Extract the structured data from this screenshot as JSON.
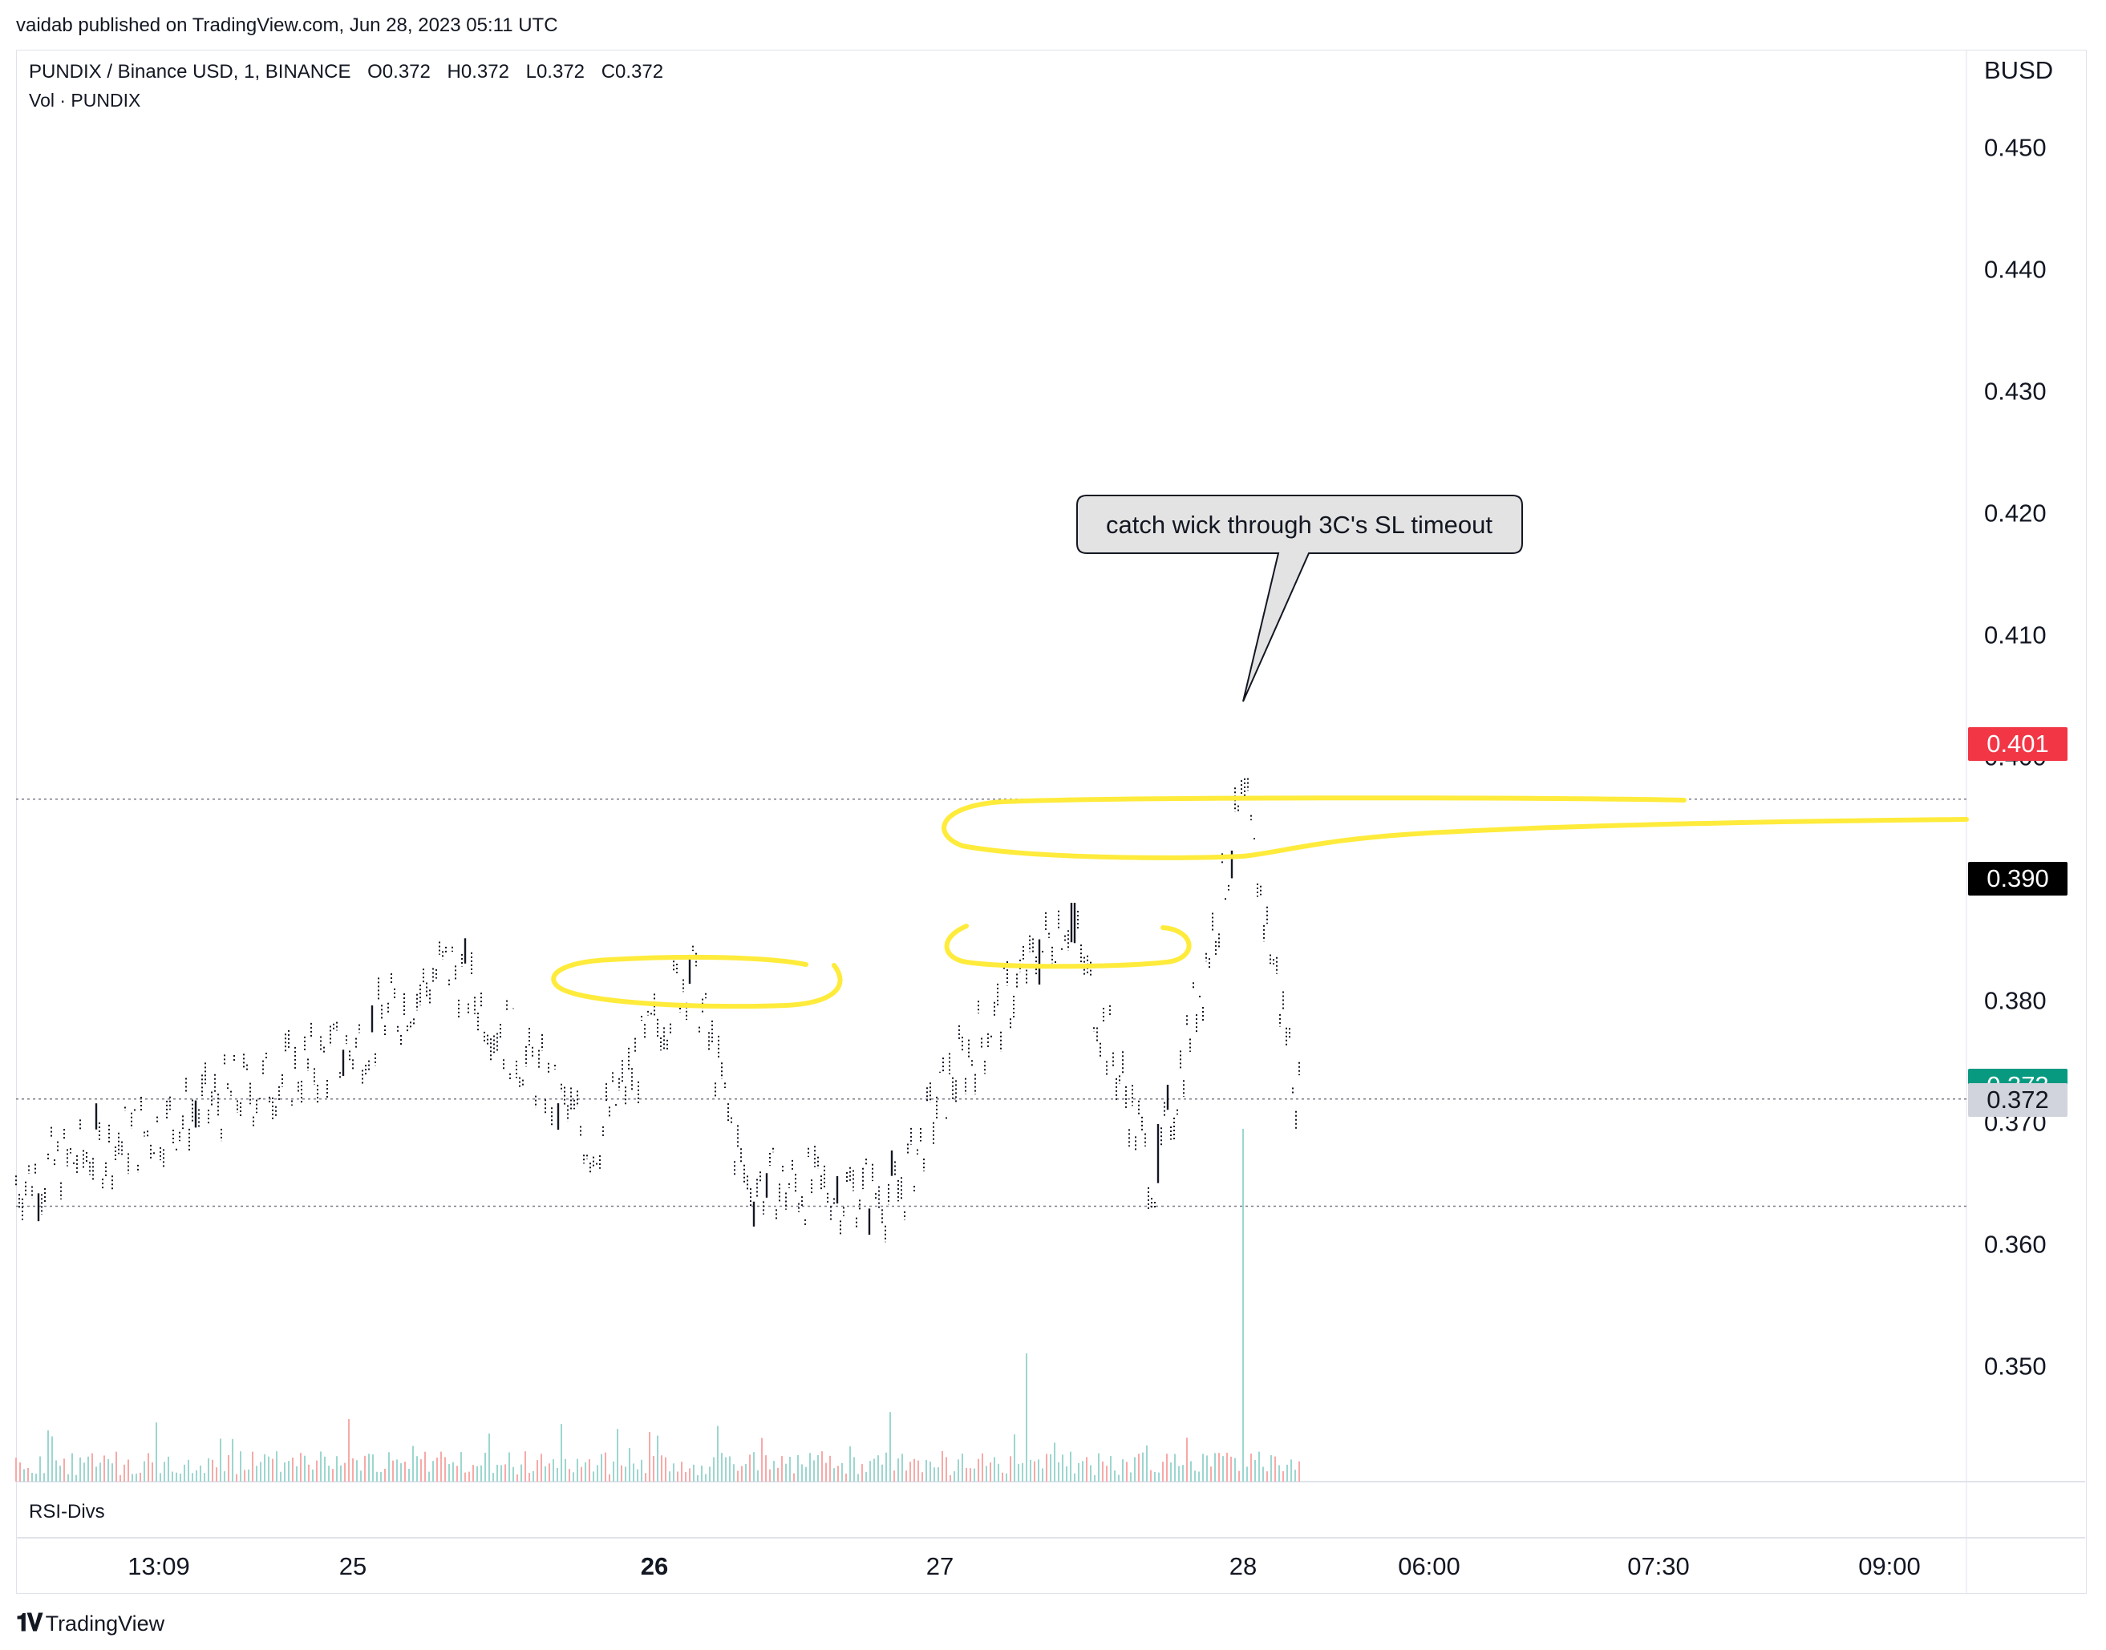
{
  "header": {
    "published": "vaidab published on TradingView.com, Jun 28, 2023 05:11 UTC",
    "symbol": "PUNDIX / Binance USD, 1, BINANCE",
    "ohlc": {
      "o": "O0.372",
      "h": "H0.372",
      "l": "L0.372",
      "c": "C0.372"
    },
    "vol_label": "Vol · PUNDIX"
  },
  "currency": "BUSD",
  "price_tags": [
    {
      "label": "0.401",
      "value": 0.401,
      "color": "#f23645",
      "text_color": "#ffffff"
    },
    {
      "label": "0.390",
      "value": 0.39,
      "color": "#000000",
      "text_color": "#ffffff"
    },
    {
      "label": "0.373",
      "value": 0.373,
      "color": "#089981",
      "text_color": "#ffffff"
    },
    {
      "label": "0.372",
      "value": 0.3718,
      "color": "#d1d4dc",
      "text_color": "#131722"
    }
  ],
  "annotation": "catch wick through 3C's SL timeout",
  "pane_label": "RSI-Divs",
  "footer_logo": "TradingView",
  "footer_logo_icon": "tradingview-logo-icon",
  "colors": {
    "candle": "#131722",
    "highlight": "#ffeb3b",
    "vol_up": "#9cd6cf",
    "vol_down": "#f7a9a7"
  },
  "chart_data": {
    "type": "candlestick",
    "title": "",
    "xlabel": "",
    "ylabel": "",
    "y_scale": "linear",
    "ylim": [
      0.3405,
      0.458
    ],
    "yticks": [
      0.35,
      0.36,
      0.37,
      0.38,
      0.39,
      0.4,
      0.41,
      0.42,
      0.43,
      0.44,
      0.45
    ],
    "ytick_labels": [
      "0.350",
      "0.360",
      "0.370",
      "0.380",
      "0.390",
      "0.400",
      "0.410",
      "0.420",
      "0.430",
      "0.440",
      "0.450"
    ],
    "xtick_labels": [
      "13:09",
      "25",
      "26",
      "27",
      "28",
      "06:00",
      "07:30",
      "09:00"
    ],
    "xtick_bold": [
      false,
      false,
      true,
      false,
      false,
      false,
      false,
      false
    ],
    "grid": false,
    "horizontal_levels": [
      0.3965,
      0.3719,
      0.3631
    ],
    "price_path": [
      {
        "t": "13:09",
        "price": 0.365
      },
      {
        "t": "25",
        "price": 0.376
      },
      {
        "t": "25 late",
        "price": 0.383
      },
      {
        "t": "26 early",
        "price": 0.368
      },
      {
        "t": "26",
        "price": 0.383
      },
      {
        "t": "26 late",
        "price": 0.365
      },
      {
        "t": "27 early",
        "price": 0.364
      },
      {
        "t": "27",
        "price": 0.372
      },
      {
        "t": "27 mid",
        "price": 0.387
      },
      {
        "t": "27 late",
        "price": 0.365
      },
      {
        "t": "28",
        "price": 0.3965
      },
      {
        "t": "28 late",
        "price": 0.3718
      }
    ],
    "volume_series": {
      "name": "Vol · PUNDIX",
      "peak_bar": "28"
    }
  }
}
